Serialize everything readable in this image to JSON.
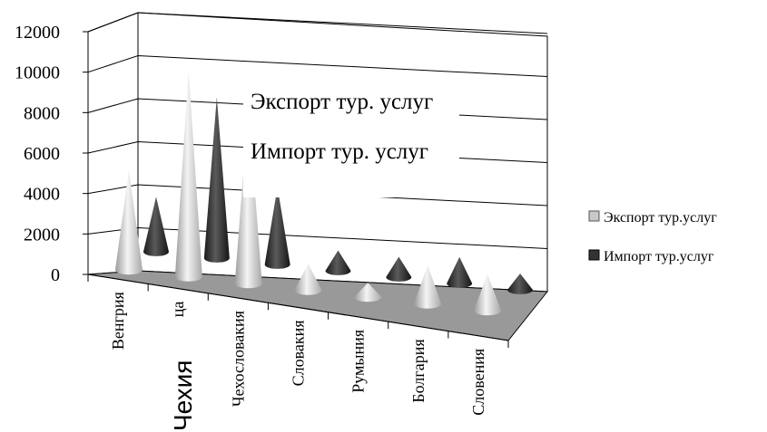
{
  "chart_data": {
    "type": "bar",
    "style": "3d-cone",
    "categories": [
      "Венгрия",
      "Чехия",
      "Чехословакия",
      "Словакия",
      "Румыния",
      "Болгария",
      "Словения"
    ],
    "category_labels_visible": [
      "Венгрия",
      "ца",
      "Чехословакия",
      "Словакия",
      "Румыния",
      "Болгария",
      "Словения"
    ],
    "overlay_label": "Чехия",
    "series": [
      {
        "name": "Экспорт тур.услуг",
        "color": "#c8c8c8",
        "values": [
          4900,
          10100,
          8700,
          1300,
          700,
          1900,
          1800
        ]
      },
      {
        "name": "Импорт тур.услуг",
        "color": "#333333",
        "values": [
          2700,
          7900,
          3800,
          1000,
          1000,
          1300,
          800
        ]
      }
    ],
    "ylim": [
      0,
      12000
    ],
    "yticks": [
      "12000",
      "10000",
      "8000",
      "6000",
      "4000",
      "2000",
      "0"
    ],
    "gridlines": true,
    "legend_position": "right",
    "annotations": [
      "Экспорт тур. услуг",
      "Импорт тур. услуг"
    ],
    "floor_color": "#999999"
  }
}
